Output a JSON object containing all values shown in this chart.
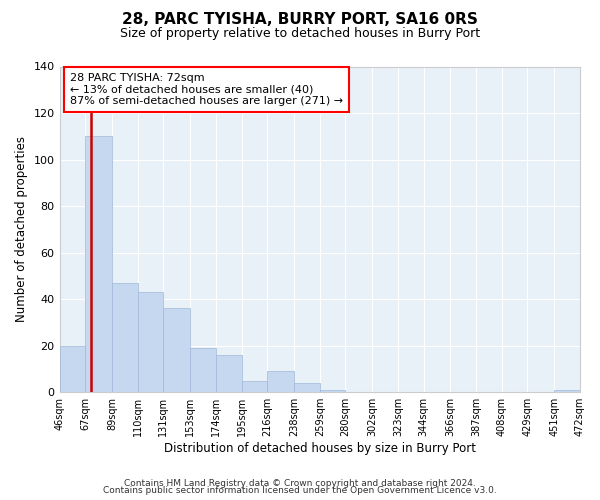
{
  "title": "28, PARC TYISHA, BURRY PORT, SA16 0RS",
  "subtitle": "Size of property relative to detached houses in Burry Port",
  "xlabel": "Distribution of detached houses by size in Burry Port",
  "ylabel": "Number of detached properties",
  "bar_color": "#c5d8f0",
  "bar_edgecolor": "#a0b8d8",
  "marker_color": "#cc0000",
  "marker_value": 72,
  "bin_edges": [
    46,
    67,
    89,
    110,
    131,
    153,
    174,
    195,
    216,
    238,
    259,
    280,
    302,
    323,
    344,
    366,
    387,
    408,
    429,
    451,
    472
  ],
  "bin_labels": [
    "46sqm",
    "67sqm",
    "89sqm",
    "110sqm",
    "131sqm",
    "153sqm",
    "174sqm",
    "195sqm",
    "216sqm",
    "238sqm",
    "259sqm",
    "280sqm",
    "302sqm",
    "323sqm",
    "344sqm",
    "366sqm",
    "387sqm",
    "408sqm",
    "429sqm",
    "451sqm",
    "472sqm"
  ],
  "counts": [
    20,
    110,
    47,
    43,
    36,
    19,
    16,
    5,
    9,
    4,
    1,
    0,
    0,
    0,
    0,
    0,
    0,
    0,
    0,
    1
  ],
  "ylim": [
    0,
    140
  ],
  "yticks": [
    0,
    20,
    40,
    60,
    80,
    100,
    120,
    140
  ],
  "annotation_line1": "28 PARC TYISHA: 72sqm",
  "annotation_line2": "← 13% of detached houses are smaller (40)",
  "annotation_line3": "87% of semi-detached houses are larger (271) →",
  "footer_line1": "Contains HM Land Registry data © Crown copyright and database right 2024.",
  "footer_line2": "Contains public sector information licensed under the Open Government Licence v3.0.",
  "plot_bg_color": "#e8f0f8",
  "grid_color": "#ffffff",
  "fig_bg_color": "#ffffff"
}
